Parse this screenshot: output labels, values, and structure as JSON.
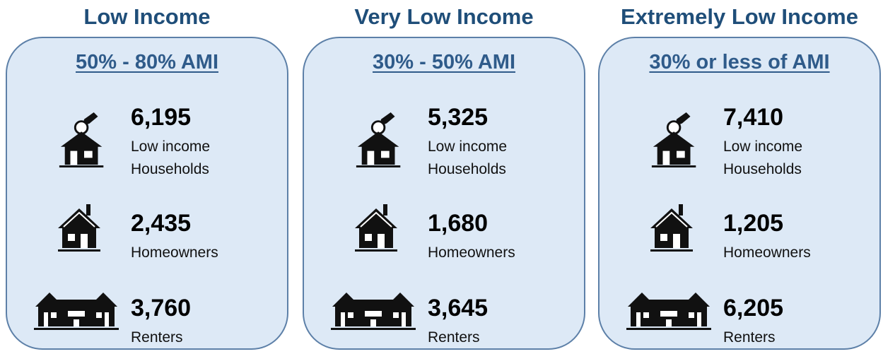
{
  "panels": [
    {
      "title": "Low Income",
      "subtitle": "50% - 80% AMI",
      "stats": [
        {
          "value": "6,195",
          "label": "Low income Households"
        },
        {
          "value": "2,435",
          "label": "Homeowners"
        },
        {
          "value": "3,760",
          "label": "Renters"
        }
      ]
    },
    {
      "title": "Very Low Income",
      "subtitle": "30% - 50% AMI",
      "stats": [
        {
          "value": "5,325",
          "label": "Low income Households"
        },
        {
          "value": "1,680",
          "label": "Homeowners"
        },
        {
          "value": "3,645",
          "label": "Renters"
        }
      ]
    },
    {
      "title": "Extremely Low Income",
      "subtitle": "30% or less of AMI",
      "stats": [
        {
          "value": "7,410",
          "label": "Low income Households"
        },
        {
          "value": "1,205",
          "label": "Homeowners"
        },
        {
          "value": "6,205",
          "label": "Renters"
        }
      ]
    }
  ]
}
